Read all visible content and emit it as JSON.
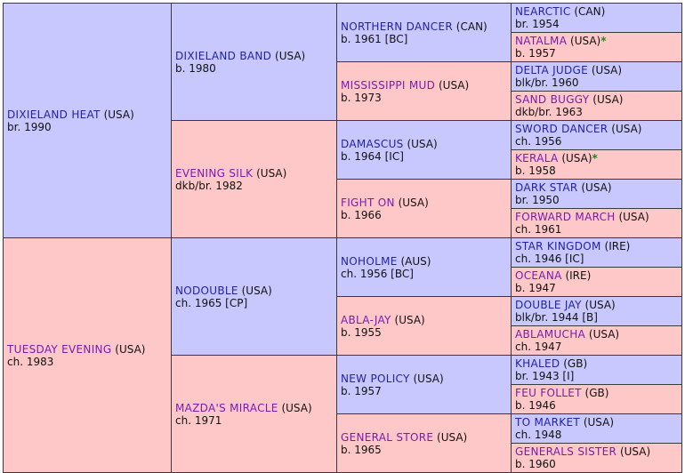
{
  "horses": {
    "h1": {
      "name": "DIXIELAND HEAT",
      "country": "(USA)",
      "info": "br. 1990"
    },
    "h2": {
      "name": "TUESDAY EVENING",
      "country": "(USA)",
      "info": "ch. 1983"
    },
    "h11": {
      "name": "DIXIELAND BAND",
      "country": "(USA)",
      "info": "b. 1980"
    },
    "h12": {
      "name": "EVENING SILK",
      "country": "(USA)",
      "info": "dkb/br. 1982"
    },
    "h21": {
      "name": "NODOUBLE",
      "country": "(USA)",
      "info": "ch. 1965 [CP]"
    },
    "h22": {
      "name": "MAZDA'S MIRACLE",
      "country": "(USA)",
      "info": "ch. 1971"
    },
    "h111": {
      "name": "NORTHERN DANCER",
      "country": "(CAN)",
      "info": "b. 1961 [BC]"
    },
    "h112": {
      "name": "MISSISSIPPI MUD",
      "country": "(USA)",
      "info": "b. 1973"
    },
    "h121": {
      "name": "DAMASCUS",
      "country": "(USA)",
      "info": "b. 1964 [IC]"
    },
    "h122": {
      "name": "FIGHT ON",
      "country": "(USA)",
      "info": "b. 1966"
    },
    "h211": {
      "name": "NOHOLME",
      "country": "(AUS)",
      "info": "ch. 1956 [BC]"
    },
    "h212": {
      "name": "ABLA-JAY",
      "country": "(USA)",
      "info": "b. 1955"
    },
    "h221": {
      "name": "NEW POLICY",
      "country": "(USA)",
      "info": "b. 1957"
    },
    "h222": {
      "name": "GENERAL STORE",
      "country": "(USA)",
      "info": "b. 1965"
    },
    "g1": {
      "name": "NEARCTIC",
      "country": "(CAN)",
      "info": "br. 1954"
    },
    "g2": {
      "name": "NATALMA",
      "country": "(USA)",
      "star": "*",
      "info": "b. 1957"
    },
    "g3": {
      "name": "DELTA JUDGE",
      "country": "(USA)",
      "info": "blk/br. 1960"
    },
    "g4": {
      "name": "SAND BUGGY",
      "country": "(USA)",
      "info": "dkb/br. 1963"
    },
    "g5": {
      "name": "SWORD DANCER",
      "country": "(USA)",
      "info": "ch. 1956"
    },
    "g6": {
      "name": "KERALA",
      "country": "(USA)",
      "star": "*",
      "info": "b. 1958"
    },
    "g7": {
      "name": "DARK STAR",
      "country": "(USA)",
      "info": "br. 1950"
    },
    "g8": {
      "name": "FORWARD MARCH",
      "country": "(USA)",
      "info": "ch. 1961"
    },
    "g9": {
      "name": "STAR KINGDOM",
      "country": "(IRE)",
      "info": "ch. 1946 [IC]"
    },
    "g10": {
      "name": "OCEANA",
      "country": "(IRE)",
      "info": "b. 1947"
    },
    "g11": {
      "name": "DOUBLE JAY",
      "country": "(USA)",
      "info": "blk/br. 1944 [B]"
    },
    "g12": {
      "name": "ABLAMUCHA",
      "country": "(USA)",
      "info": "ch. 1947"
    },
    "g13": {
      "name": "KHALED",
      "country": "(GB)",
      "info": "br. 1943 [I]"
    },
    "g14": {
      "name": "FEU FOLLET",
      "country": "(GB)",
      "info": "b. 1946"
    },
    "g15": {
      "name": "TO MARKET",
      "country": "(USA)",
      "info": "ch. 1948"
    },
    "g16": {
      "name": "GENERALS SISTER",
      "country": "(USA)",
      "info": "b. 1960"
    }
  },
  "colors": {
    "male_bg": "#c8c8ff",
    "female_bg": "#ffc8c8",
    "border": "#3a3a3a",
    "sire_link": "#2222aa",
    "dam_link": "#7a1ab0",
    "star": "#1a8a1a"
  }
}
